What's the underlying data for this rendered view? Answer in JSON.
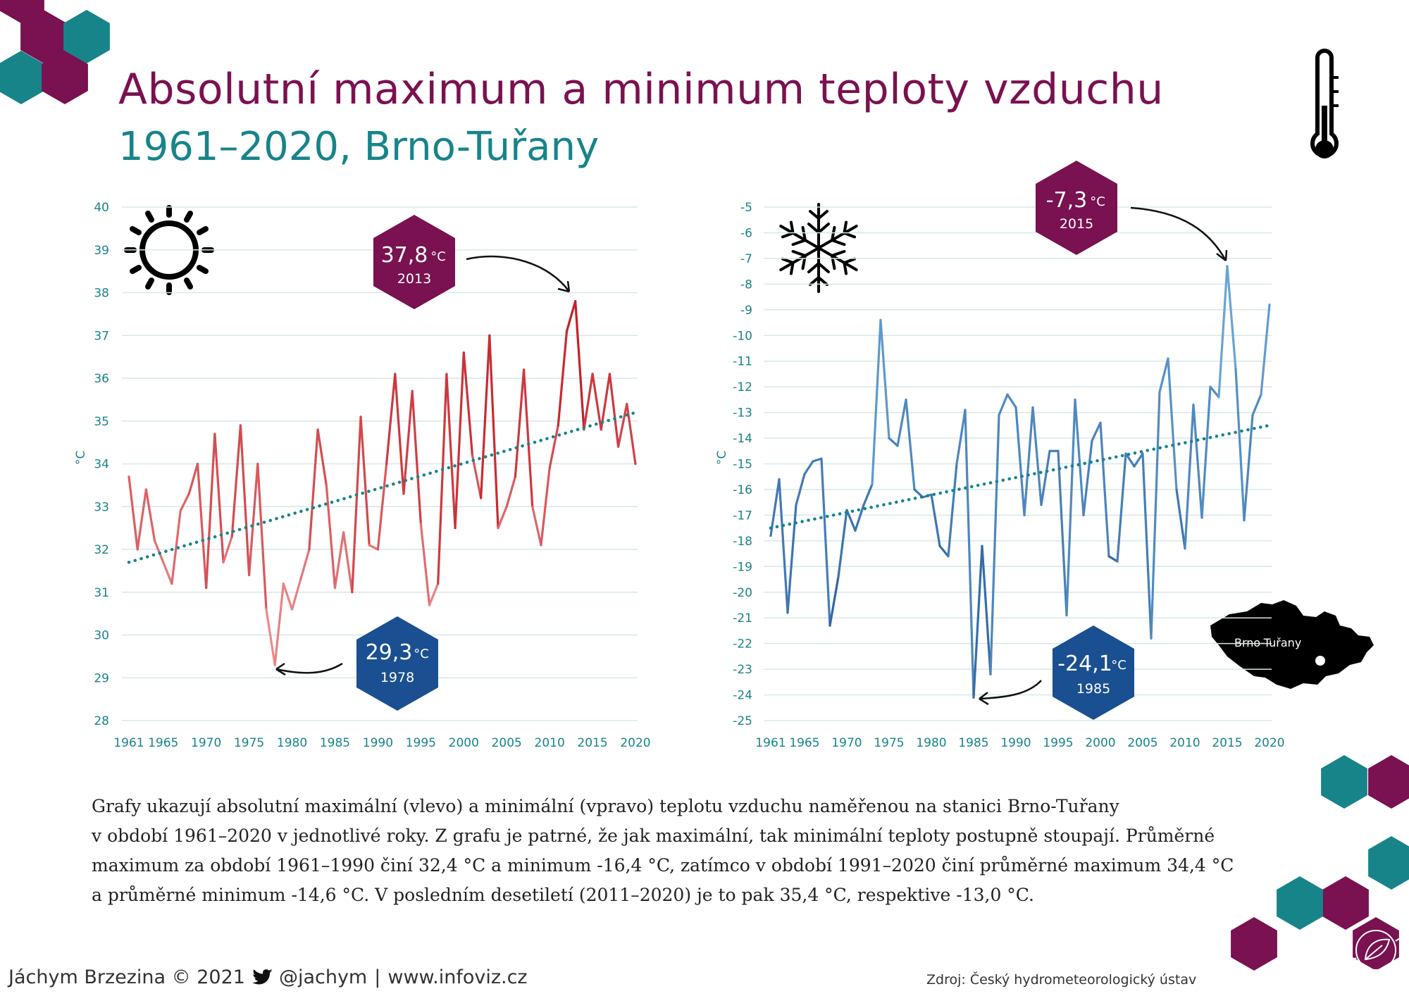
{
  "header": {
    "title": "Absolutní maximum a minimum teploty vzduchu",
    "subtitle": "1961–2020, Brno-Tuřany"
  },
  "colors": {
    "magenta": "#7a1150",
    "teal": "#17848a",
    "blue_dark": "#1a4f91",
    "red_dark": "#c32027",
    "red_light": "#f4a3a3",
    "blue_light": "#6aa4d6"
  },
  "chart_data": [
    {
      "type": "line",
      "title": "",
      "xlabel": "",
      "ylabel": "°C",
      "ylim": [
        28,
        40
      ],
      "y_ticks": [
        "28",
        "29",
        "30",
        "31",
        "32",
        "33",
        "34",
        "35",
        "36",
        "37",
        "38",
        "39",
        "40"
      ],
      "x_ticks": [
        "1961",
        "1965",
        "1970",
        "1975",
        "1980",
        "1985",
        "1990",
        "1995",
        "2000",
        "2005",
        "2010",
        "2015",
        "2020"
      ],
      "grid": true,
      "x": [
        1961,
        1962,
        1963,
        1964,
        1965,
        1966,
        1967,
        1968,
        1969,
        1970,
        1971,
        1972,
        1973,
        1974,
        1975,
        1976,
        1977,
        1978,
        1979,
        1980,
        1981,
        1982,
        1983,
        1984,
        1985,
        1986,
        1987,
        1988,
        1989,
        1990,
        1991,
        1992,
        1993,
        1994,
        1995,
        1996,
        1997,
        1998,
        1999,
        2000,
        2001,
        2002,
        2003,
        2004,
        2005,
        2006,
        2007,
        2008,
        2009,
        2010,
        2011,
        2012,
        2013,
        2014,
        2015,
        2016,
        2017,
        2018,
        2019,
        2020
      ],
      "series": [
        {
          "values": [
            33.7,
            32.0,
            33.4,
            32.2,
            31.7,
            31.2,
            32.9,
            33.3,
            34.0,
            31.1,
            34.7,
            31.7,
            32.3,
            34.9,
            31.4,
            34.0,
            30.6,
            29.3,
            31.2,
            30.6,
            31.3,
            32.0,
            34.8,
            33.5,
            31.1,
            32.4,
            31.0,
            35.1,
            32.1,
            32.0,
            34.0,
            36.1,
            33.3,
            35.7,
            32.6,
            30.7,
            31.2,
            36.1,
            32.5,
            36.6,
            34.2,
            33.2,
            37.0,
            32.5,
            33.0,
            33.7,
            36.2,
            33.0,
            32.1,
            33.9,
            34.9,
            37.1,
            37.8,
            34.8,
            36.1,
            34.8,
            36.1,
            34.4,
            35.4,
            34.0
          ]
        }
      ],
      "trend": {
        "from": [
          1961,
          31.7
        ],
        "to": [
          2020,
          35.2
        ]
      },
      "annotations": [
        {
          "value": "37,8",
          "unit": "°C",
          "year": "2013"
        },
        {
          "value": "29,3",
          "unit": "°C",
          "year": "1978"
        }
      ]
    },
    {
      "type": "line",
      "title": "",
      "xlabel": "",
      "ylabel": "°C",
      "ylim": [
        -25,
        -5
      ],
      "y_ticks": [
        "-5",
        "-6",
        "-7",
        "-8",
        "-9",
        "-10",
        "-11",
        "-12",
        "-13",
        "-14",
        "-15",
        "-16",
        "-17",
        "-18",
        "-19",
        "-20",
        "-21",
        "-22",
        "-23",
        "-24",
        "-25"
      ],
      "x_ticks": [
        "1961",
        "1965",
        "1970",
        "1975",
        "1980",
        "1985",
        "1990",
        "1995",
        "2000",
        "2005",
        "2010",
        "2015",
        "2020"
      ],
      "grid": true,
      "x": [
        1961,
        1962,
        1963,
        1964,
        1965,
        1966,
        1967,
        1968,
        1969,
        1970,
        1971,
        1972,
        1973,
        1974,
        1975,
        1976,
        1977,
        1978,
        1979,
        1980,
        1981,
        1982,
        1983,
        1984,
        1985,
        1986,
        1987,
        1988,
        1989,
        1990,
        1991,
        1992,
        1993,
        1994,
        1995,
        1996,
        1997,
        1998,
        1999,
        2000,
        2001,
        2002,
        2003,
        2004,
        2005,
        2006,
        2007,
        2008,
        2009,
        2010,
        2011,
        2012,
        2013,
        2014,
        2015,
        2016,
        2017,
        2018,
        2019,
        2020
      ],
      "series": [
        {
          "values": [
            -17.8,
            -15.6,
            -20.8,
            -16.6,
            -15.4,
            -14.9,
            -14.8,
            -21.3,
            -19.4,
            -16.8,
            -17.6,
            -16.6,
            -15.8,
            -9.4,
            -14.0,
            -14.3,
            -12.5,
            -16.0,
            -16.3,
            -16.2,
            -18.2,
            -18.6,
            -15.0,
            -12.9,
            -24.1,
            -18.2,
            -23.2,
            -13.1,
            -12.3,
            -12.8,
            -17.0,
            -12.8,
            -16.6,
            -14.5,
            -14.5,
            -20.9,
            -12.5,
            -17.0,
            -14.1,
            -13.4,
            -18.6,
            -18.8,
            -14.6,
            -15.1,
            -14.6,
            -21.8,
            -12.2,
            -10.9,
            -16.0,
            -18.3,
            -12.7,
            -17.1,
            -12.0,
            -12.4,
            -7.3,
            -11.3,
            -17.2,
            -13.1,
            -12.3,
            -8.8
          ]
        }
      ],
      "trend": {
        "from": [
          1961,
          -17.5
        ],
        "to": [
          2020,
          -13.5
        ]
      },
      "annotations": [
        {
          "value": "-7,3",
          "unit": "°C",
          "year": "2015"
        },
        {
          "value": "-24,1",
          "unit": "°C",
          "year": "1985"
        }
      ],
      "map_label": "Brno-Tuřany"
    }
  ],
  "icons": {
    "sun": "sun-icon",
    "snowflake": "snowflake-icon",
    "thermometer": "thermometer-icon",
    "twitter": "twitter-bird-icon",
    "logo": "leaf-circuit-icon"
  },
  "description": {
    "lines": [
      "Grafy ukazují absolutní maximální (vlevo) a minimální (vpravo) teplotu vzduchu naměřenou na stanici Brno-Tuřany",
      "v období 1961–2020 v jednotlivé roky. Z grafu je patrné, že jak maximální, tak minimální teploty postupně stoupají. Průměrné",
      "maximum za období 1961–1990 činí 32,4 °C a minimum -16,4 °C, zatímco v období 1991–2020 činí průměrné maximum 34,4 °C",
      "a průměrné minimum -14,6 °C. V posledním desetiletí (2011–2020) je to pak 35,4 °C, respektive -13,0 °C."
    ]
  },
  "footer": {
    "author": "Jáchym Brzezina © 2021",
    "handle": "@jachym",
    "separator": "|",
    "website": "www.infoviz.cz",
    "source": "Zdroj: Český hydrometeorologický ústav"
  }
}
